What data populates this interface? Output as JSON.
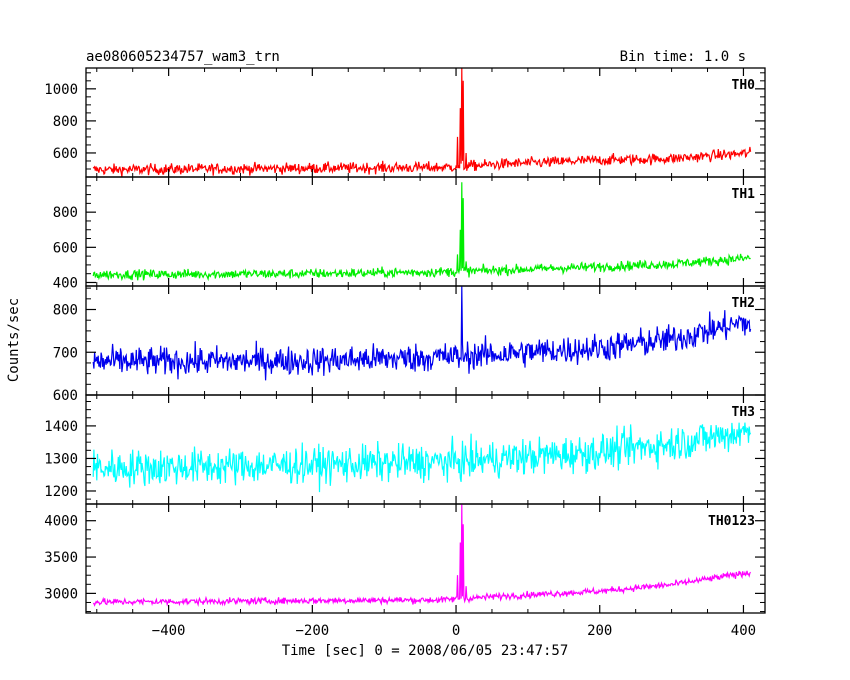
{
  "chart_data": {
    "type": "line",
    "title": "ae080605234757_wam3_trn",
    "subtitle": "Bin time: 1.0 s",
    "xlabel": "Time [sec] 0 = 2008/06/05 23:47:57",
    "ylabel": "Counts/sec",
    "xlim": [
      -515,
      430
    ],
    "x_ticks": [
      -400,
      -200,
      0,
      200,
      400
    ],
    "x_tick_labels": [
      "−400",
      "−200",
      "0",
      "200",
      "400"
    ],
    "x_range": [
      -505,
      410
    ],
    "bin_time": 1.0,
    "grid": false,
    "panels": [
      {
        "name": "TH0",
        "color": "#ff0000",
        "ylim": [
          450,
          1130
        ],
        "y_ticks": [
          600,
          800,
          1000
        ],
        "y_tick_labels": [
          "600",
          "800",
          "1000"
        ],
        "baseline": [
          [
            -505,
            495
          ],
          [
            -200,
            505
          ],
          [
            -20,
            510
          ],
          [
            60,
            530
          ],
          [
            200,
            555
          ],
          [
            300,
            565
          ],
          [
            410,
            600
          ]
        ],
        "noise": 42,
        "peaks": [
          [
            2,
            700
          ],
          [
            6,
            880
          ],
          [
            8,
            1130
          ],
          [
            10,
            1050
          ],
          [
            14,
            600
          ]
        ]
      },
      {
        "name": "TH1",
        "color": "#00ee00",
        "ylim": [
          380,
          1000
        ],
        "y_ticks": [
          400,
          600,
          800
        ],
        "y_tick_labels": [
          "400",
          "600",
          "800"
        ],
        "baseline": [
          [
            -505,
            445
          ],
          [
            -200,
            450
          ],
          [
            -20,
            460
          ],
          [
            60,
            470
          ],
          [
            200,
            490
          ],
          [
            300,
            505
          ],
          [
            410,
            540
          ]
        ],
        "noise": 34,
        "peaks": [
          [
            2,
            560
          ],
          [
            6,
            700
          ],
          [
            8,
            970
          ],
          [
            10,
            880
          ],
          [
            14,
            520
          ]
        ]
      },
      {
        "name": "TH2",
        "color": "#0000ee",
        "ylim": [
          600,
          855
        ],
        "y_ticks": [
          600,
          700,
          800
        ],
        "y_tick_labels": [
          "600",
          "700",
          "800"
        ],
        "baseline": [
          [
            -505,
            678
          ],
          [
            -200,
            680
          ],
          [
            0,
            690
          ],
          [
            200,
            710
          ],
          [
            300,
            730
          ],
          [
            400,
            770
          ],
          [
            410,
            762
          ]
        ],
        "noise": 42,
        "peaks": [
          [
            8,
            855
          ]
        ]
      },
      {
        "name": "TH3",
        "color": "#00ffff",
        "ylim": [
          1160,
          1495
        ],
        "y_ticks": [
          1200,
          1300,
          1400
        ],
        "y_tick_labels": [
          "1200",
          "1300",
          "1400"
        ],
        "baseline": [
          [
            -505,
            1270
          ],
          [
            -200,
            1280
          ],
          [
            0,
            1290
          ],
          [
            200,
            1320
          ],
          [
            300,
            1345
          ],
          [
            410,
            1385
          ]
        ],
        "noise": 70,
        "peaks": []
      },
      {
        "name": "TH0123",
        "color": "#ff00ff",
        "ylim": [
          2730,
          4230
        ],
        "y_ticks": [
          3000,
          3500,
          4000
        ],
        "y_tick_labels": [
          "3000",
          "3500",
          "4000"
        ],
        "baseline": [
          [
            -505,
            2880
          ],
          [
            -200,
            2900
          ],
          [
            -20,
            2910
          ],
          [
            60,
            2960
          ],
          [
            200,
            3030
          ],
          [
            300,
            3120
          ],
          [
            410,
            3290
          ]
        ],
        "noise": 55,
        "peaks": [
          [
            2,
            3250
          ],
          [
            6,
            3700
          ],
          [
            8,
            4230
          ],
          [
            10,
            3950
          ],
          [
            14,
            3100
          ]
        ]
      }
    ]
  }
}
